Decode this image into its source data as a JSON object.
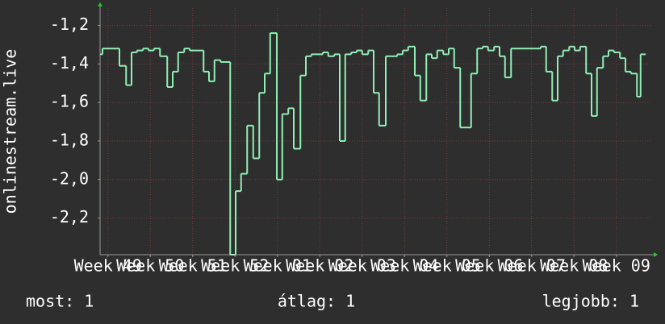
{
  "chart_data": {
    "type": "line",
    "step": true,
    "ylabel": "onlinestream.live",
    "x": [
      0,
      0.4,
      3.2,
      4.3,
      5.2,
      6.1,
      7.1,
      8,
      8.9,
      9.9,
      11.1,
      12,
      12.9,
      13.9,
      14.8,
      17.1,
      18,
      18.9,
      19.9,
      21.5,
      22.4,
      23.3,
      24.3,
      25.3,
      26.3,
      27.2,
      28.1,
      29.2,
      30.1,
      31.1,
      32,
      33.1,
      34,
      34.9,
      36.8,
      37.7,
      38.7,
      39.6,
      40.5,
      41.5,
      42.4,
      43.3,
      44.3,
      45.2,
      46.1,
      47.2,
      49.1,
      50,
      50.9,
      52,
      52.9,
      53.9,
      54.8,
      55.7,
      56.7,
      57.6,
      58.5,
      59.5,
      61.3,
      62.3,
      63.2,
      64.1,
      65.1,
      66,
      66.9,
      67.9,
      72.8,
      73.7,
      74.7,
      75.6,
      76.5,
      77.5,
      78.4,
      79.3,
      80.3,
      81.2,
      82.1,
      83.1,
      84,
      84.9,
      85.9,
      86.8,
      87.7,
      88.7,
      89.3,
      90.1
    ],
    "series": [
      {
        "color": "#8ff0b4",
        "values": [
          -1.35,
          -1.32,
          -1.41,
          -1.51,
          -1.34,
          -1.33,
          -1.32,
          -1.33,
          -1.32,
          -1.36,
          -1.52,
          -1.44,
          -1.34,
          -1.32,
          -1.33,
          -1.44,
          -1.49,
          -1.38,
          -1.39,
          -2.39,
          -2.06,
          -1.97,
          -1.72,
          -1.89,
          -1.55,
          -1.45,
          -1.24,
          -2.0,
          -1.66,
          -1.63,
          -1.84,
          -1.46,
          -1.36,
          -1.35,
          -1.34,
          -1.36,
          -1.35,
          -1.8,
          -1.35,
          -1.34,
          -1.33,
          -1.35,
          -1.33,
          -1.55,
          -1.72,
          -1.36,
          -1.35,
          -1.33,
          -1.31,
          -1.46,
          -1.59,
          -1.35,
          -1.37,
          -1.33,
          -1.35,
          -1.32,
          -1.42,
          -1.73,
          -1.45,
          -1.32,
          -1.31,
          -1.33,
          -1.31,
          -1.36,
          -1.47,
          -1.32,
          -1.31,
          -1.44,
          -1.59,
          -1.36,
          -1.33,
          -1.31,
          -1.33,
          -1.31,
          -1.45,
          -1.67,
          -1.42,
          -1.36,
          -1.33,
          -1.34,
          -1.37,
          -1.44,
          -1.45,
          -1.57,
          -1.35,
          -1.35
        ]
      }
    ],
    "xlim": [
      0,
      91.2
    ],
    "xticks": [
      {
        "value": 1.3,
        "label": "Week 49"
      },
      {
        "value": 8.3,
        "label": "Week 50"
      },
      {
        "value": 15.3,
        "label": "Week 51"
      },
      {
        "value": 22.3,
        "label": "Week 52"
      },
      {
        "value": 29.3,
        "label": "Week 01"
      },
      {
        "value": 36.3,
        "label": "Week 02"
      },
      {
        "value": 43.3,
        "label": "Week 03"
      },
      {
        "value": 50.3,
        "label": "Week 04"
      },
      {
        "value": 57.3,
        "label": "Week 05"
      },
      {
        "value": 64.3,
        "label": "Week 06"
      },
      {
        "value": 71.3,
        "label": "Week 07"
      },
      {
        "value": 78.3,
        "label": "Week 08"
      },
      {
        "value": 85.3,
        "label": "Week 09"
      }
    ],
    "ylim": [
      -2.39,
      -1.11
    ],
    "yticks": [
      {
        "value": -1.2,
        "label": "-1,2"
      },
      {
        "value": -1.4,
        "label": "-1,4"
      },
      {
        "value": -1.6,
        "label": "-1,6"
      },
      {
        "value": -1.8,
        "label": "-1,8"
      },
      {
        "value": -2.0,
        "label": "-2,0"
      },
      {
        "value": -2.2,
        "label": "-2,2"
      }
    ],
    "grid": true
  },
  "stats": [
    "most: 1",
    "átlag: 1",
    "legjobb: 1"
  ]
}
